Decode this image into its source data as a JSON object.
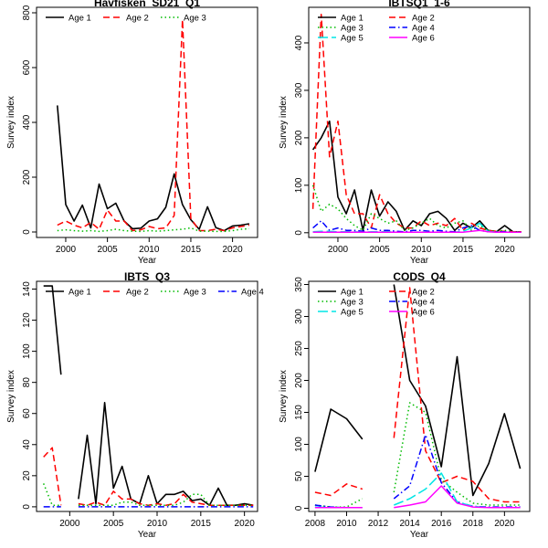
{
  "chart_data": [
    {
      "type": "line",
      "title": "Havfisken_SD21_Q1",
      "xlabel": "Year",
      "ylabel": "Survey index",
      "xlim": [
        1996.5,
        2023
      ],
      "ylim": [
        -20,
        820
      ],
      "xticks": [
        "2000",
        "2005",
        "2010",
        "2015",
        "2020"
      ],
      "yticks": [
        "0",
        "200",
        "400",
        "600",
        "800"
      ],
      "legend_position": "top-left",
      "series": [
        {
          "name": "Age 1",
          "color": "#000000",
          "dash": "solid",
          "x": [
            1999,
            2000,
            2001,
            2002,
            2003,
            2004,
            2005,
            2006,
            2007,
            2008,
            2009,
            2010,
            2011,
            2012,
            2013,
            2014,
            2015,
            2016,
            2017,
            2018,
            2019,
            2020,
            2021,
            2022
          ],
          "y": [
            462,
            100,
            40,
            98,
            15,
            175,
            85,
            105,
            40,
            12,
            14,
            40,
            48,
            90,
            212,
            100,
            45,
            10,
            92,
            16,
            5,
            22,
            25,
            30
          ]
        },
        {
          "name": "Age 2",
          "color": "#ff0000",
          "dash": "dashed",
          "x": [
            1999,
            2000,
            2001,
            2002,
            2003,
            2004,
            2005,
            2006,
            2007,
            2008,
            2009,
            2010,
            2011,
            2012,
            2013,
            2014,
            2015,
            2016,
            2017,
            2018,
            2019,
            2020,
            2021,
            2022
          ],
          "y": [
            25,
            40,
            25,
            15,
            35,
            10,
            80,
            40,
            40,
            5,
            8,
            20,
            12,
            15,
            60,
            775,
            50,
            5,
            5,
            10,
            5,
            15,
            20,
            25
          ]
        },
        {
          "name": "Age 3",
          "color": "#00bb00",
          "dash": "dotted",
          "x": [
            1999,
            2000,
            2001,
            2002,
            2003,
            2004,
            2005,
            2006,
            2007,
            2008,
            2009,
            2010,
            2011,
            2012,
            2013,
            2014,
            2015,
            2016,
            2017,
            2018,
            2019,
            2020,
            2021,
            2022
          ],
          "y": [
            5,
            8,
            5,
            3,
            5,
            2,
            5,
            10,
            5,
            3,
            2,
            5,
            3,
            5,
            8,
            10,
            15,
            3,
            3,
            2,
            2,
            5,
            10,
            12
          ]
        }
      ]
    },
    {
      "type": "line",
      "title": "IBTSQ1_1-6",
      "xlabel": "Year",
      "ylabel": "Survey index",
      "xlim": [
        1996.5,
        2023
      ],
      "ylim": [
        -10,
        475
      ],
      "xticks": [
        "2000",
        "2005",
        "2010",
        "2015",
        "2020"
      ],
      "yticks": [
        "0",
        "100",
        "200",
        "300",
        "400"
      ],
      "legend_position": "top-left",
      "series": [
        {
          "name": "Age 1",
          "color": "#000000",
          "dash": "solid",
          "x": [
            1997,
            1998,
            1999,
            2000,
            2001,
            2002,
            2003,
            2004,
            2005,
            2006,
            2007,
            2008,
            2009,
            2010,
            2011,
            2012,
            2013,
            2014,
            2015,
            2016,
            2017,
            2018,
            2019,
            2020,
            2021,
            2022
          ],
          "y": [
            175,
            200,
            235,
            75,
            40,
            90,
            5,
            90,
            35,
            65,
            45,
            5,
            25,
            15,
            40,
            45,
            30,
            5,
            20,
            10,
            25,
            5,
            2,
            15,
            2,
            2
          ]
        },
        {
          "name": "Age 2",
          "color": "#ff0000",
          "dash": "dashed",
          "x": [
            1997,
            1998,
            1999,
            2000,
            2001,
            2002,
            2003,
            2004,
            2005,
            2006,
            2007,
            2008,
            2009,
            2010,
            2011,
            2012,
            2013,
            2014,
            2015,
            2016,
            2017,
            2018,
            2019,
            2020,
            2021,
            2022
          ],
          "y": [
            50,
            460,
            160,
            235,
            80,
            40,
            40,
            10,
            80,
            40,
            20,
            10,
            10,
            25,
            15,
            20,
            15,
            30,
            5,
            20,
            10,
            5,
            3,
            3,
            2,
            2
          ]
        },
        {
          "name": "Age 3",
          "color": "#00bb00",
          "dash": "dotted",
          "x": [
            1997,
            1998,
            1999,
            2000,
            2001,
            2002,
            2003,
            2004,
            2005,
            2006,
            2007,
            2008,
            2009,
            2010,
            2011,
            2012,
            2013,
            2014,
            2015,
            2016,
            2017,
            2018,
            2019,
            2020,
            2021,
            2022
          ],
          "y": [
            100,
            45,
            60,
            50,
            30,
            15,
            5,
            40,
            30,
            20,
            25,
            5,
            10,
            20,
            30,
            15,
            10,
            20,
            25,
            5,
            15,
            5,
            3,
            5,
            2,
            2
          ]
        },
        {
          "name": "Age 4",
          "color": "#0000ff",
          "dash": "dashdot",
          "x": [
            1997,
            1998,
            1999,
            2000,
            2001,
            2002,
            2003,
            2004,
            2005,
            2006,
            2007,
            2008,
            2009,
            2010,
            2011,
            2012,
            2013,
            2014,
            2015,
            2016,
            2017,
            2018,
            2019,
            2020,
            2021,
            2022
          ],
          "y": [
            10,
            25,
            5,
            10,
            5,
            5,
            3,
            10,
            5,
            5,
            3,
            2,
            5,
            5,
            3,
            5,
            3,
            2,
            10,
            15,
            5,
            2,
            2,
            2,
            1,
            1
          ]
        },
        {
          "name": "Age 5",
          "color": "#00e5e5",
          "dash": "longdash",
          "x": [
            1997,
            1998,
            1999,
            2000,
            2001,
            2002,
            2003,
            2004,
            2005,
            2006,
            2007,
            2008,
            2009,
            2010,
            2011,
            2012,
            2013,
            2014,
            2015,
            2016,
            2017,
            2018,
            2019,
            2020,
            2021,
            2022
          ],
          "y": [
            2,
            3,
            3,
            2,
            2,
            2,
            1,
            2,
            2,
            2,
            1,
            1,
            1,
            2,
            1,
            1,
            1,
            1,
            3,
            10,
            20,
            3,
            1,
            1,
            1,
            1
          ]
        },
        {
          "name": "Age 6",
          "color": "#ff00ff",
          "dash": "solid",
          "x": [
            1997,
            1998,
            1999,
            2000,
            2001,
            2002,
            2003,
            2004,
            2005,
            2006,
            2007,
            2008,
            2009,
            2010,
            2011,
            2012,
            2013,
            2014,
            2015,
            2016,
            2017,
            2018,
            2019,
            2020,
            2021,
            2022
          ],
          "y": [
            1,
            1,
            1,
            1,
            1,
            1,
            1,
            1,
            1,
            1,
            1,
            1,
            1,
            1,
            1,
            1,
            1,
            1,
            1,
            3,
            5,
            2,
            1,
            1,
            1,
            1
          ]
        }
      ]
    },
    {
      "type": "line",
      "title": "IBTS_Q3",
      "xlabel": "Year",
      "ylabel": "Survey index",
      "xlim": [
        1996.2,
        2021.5
      ],
      "ylim": [
        -3,
        145
      ],
      "xticks": [
        "2000",
        "2005",
        "2010",
        "2015",
        "2020"
      ],
      "yticks": [
        "0",
        "20",
        "40",
        "60",
        "80",
        "100",
        "120",
        "140"
      ],
      "legend_position": "top-left",
      "series": [
        {
          "name": "Age 1",
          "color": "#000000",
          "dash": "solid",
          "x": [
            1997,
            1998,
            1999,
            null,
            2001,
            2002,
            2003,
            2004,
            2005,
            2006,
            2007,
            2008,
            2009,
            2010,
            2011,
            2012,
            2013,
            2014,
            2015,
            2016,
            2017,
            2018,
            2019,
            2020,
            2021
          ],
          "y": [
            142,
            142,
            85,
            null,
            5,
            46,
            2,
            67,
            12,
            26,
            5,
            2,
            20,
            2,
            8,
            8,
            10,
            4,
            5,
            1,
            12,
            1,
            1,
            2,
            1
          ]
        },
        {
          "name": "Age 2",
          "color": "#ff0000",
          "dash": "dashed",
          "x": [
            1997,
            1998,
            1999,
            null,
            2001,
            2002,
            2003,
            2004,
            2005,
            2006,
            2007,
            2008,
            2009,
            2010,
            2011,
            2012,
            2013,
            2014,
            2015,
            2016,
            2017,
            2018,
            2019,
            2020,
            2021
          ],
          "y": [
            32,
            38,
            1,
            null,
            2,
            1,
            3,
            1,
            10,
            5,
            5,
            2,
            1,
            2,
            1,
            2,
            8,
            3,
            2,
            1,
            1,
            1,
            1,
            1,
            1
          ]
        },
        {
          "name": "Age 3",
          "color": "#00bb00",
          "dash": "dotted",
          "x": [
            1997,
            1998,
            1999,
            null,
            2001,
            2002,
            2003,
            2004,
            2005,
            2006,
            2007,
            2008,
            2009,
            2010,
            2011,
            2012,
            2013,
            2014,
            2015,
            2016,
            2017,
            2018,
            2019,
            2020,
            2021
          ],
          "y": [
            15,
            1,
            1,
            null,
            1,
            1,
            1,
            1,
            1,
            3,
            3,
            1,
            1,
            1,
            1,
            1,
            3,
            8,
            8,
            1,
            1,
            1,
            1,
            1,
            1
          ]
        },
        {
          "name": "Age 4",
          "color": "#0000ff",
          "dash": "dashdot",
          "x": [
            1997,
            1998,
            1999,
            null,
            2001,
            2002,
            2003,
            2004,
            2005,
            2006,
            2007,
            2008,
            2009,
            2010,
            2011,
            2012,
            2013,
            2014,
            2015,
            2016,
            2017,
            2018,
            2019,
            2020,
            2021
          ],
          "y": [
            0,
            0,
            0,
            null,
            0,
            0,
            0,
            0,
            0,
            0,
            0,
            0,
            0,
            0,
            0,
            0,
            0,
            0,
            0,
            0,
            0,
            0,
            0,
            0,
            0
          ]
        }
      ]
    },
    {
      "type": "line",
      "title": "CODS_Q4",
      "xlabel": "Year",
      "ylabel": "Survey index",
      "xlim": [
        2007.6,
        2021.6
      ],
      "ylim": [
        -5,
        355
      ],
      "xticks": [
        "2008",
        "2010",
        "2012",
        "2014",
        "2016",
        "2018",
        "2020"
      ],
      "yticks": [
        "0",
        "50",
        "100",
        "150",
        "200",
        "250",
        "300",
        "350"
      ],
      "legend_position": "top-left",
      "series": [
        {
          "name": "Age 1",
          "color": "#000000",
          "dash": "solid",
          "x": [
            2008,
            2009,
            2010,
            2011,
            null,
            2013,
            2014,
            2015,
            2016,
            2017,
            2018,
            2019,
            2020,
            2021
          ],
          "y": [
            57,
            155,
            140,
            108,
            null,
            350,
            200,
            160,
            65,
            237,
            20,
            70,
            148,
            62
          ]
        },
        {
          "name": "Age 2",
          "color": "#ff0000",
          "dash": "dashed",
          "x": [
            2008,
            2009,
            2010,
            2011,
            null,
            2013,
            2014,
            2015,
            2016,
            2017,
            2018,
            2019,
            2020,
            2021
          ],
          "y": [
            25,
            20,
            38,
            30,
            null,
            110,
            345,
            90,
            40,
            50,
            42,
            15,
            10,
            10
          ]
        },
        {
          "name": "Age 3",
          "color": "#00bb00",
          "dash": "dotted",
          "x": [
            2008,
            2009,
            2010,
            2011,
            null,
            2013,
            2014,
            2015,
            2016,
            2017,
            2018,
            2019,
            2020,
            2021
          ],
          "y": [
            5,
            2,
            2,
            15,
            null,
            25,
            165,
            150,
            45,
            25,
            8,
            5,
            5,
            5
          ]
        },
        {
          "name": "Age 4",
          "color": "#0000ff",
          "dash": "dashdot",
          "x": [
            2008,
            2009,
            2010,
            2011,
            null,
            2013,
            2014,
            2015,
            2016,
            2017,
            2018,
            2019,
            2020,
            2021
          ],
          "y": [
            5,
            2,
            1,
            1,
            null,
            15,
            35,
            115,
            40,
            10,
            3,
            2,
            2,
            2
          ]
        },
        {
          "name": "Age 5",
          "color": "#00e5e5",
          "dash": "longdash",
          "x": [
            2008,
            2009,
            2010,
            2011,
            null,
            2013,
            2014,
            2015,
            2016,
            2017,
            2018,
            2019,
            2020,
            2021
          ],
          "y": [
            2,
            1,
            1,
            1,
            null,
            5,
            15,
            30,
            55,
            10,
            3,
            1,
            1,
            1
          ]
        },
        {
          "name": "Age 6",
          "color": "#ff00ff",
          "dash": "solid",
          "x": [
            2008,
            2009,
            2010,
            2011,
            null,
            2013,
            2014,
            2015,
            2016,
            2017,
            2018,
            2019,
            2020,
            2021
          ],
          "y": [
            1,
            1,
            1,
            1,
            null,
            1,
            5,
            10,
            35,
            8,
            2,
            1,
            1,
            1
          ]
        }
      ]
    }
  ]
}
